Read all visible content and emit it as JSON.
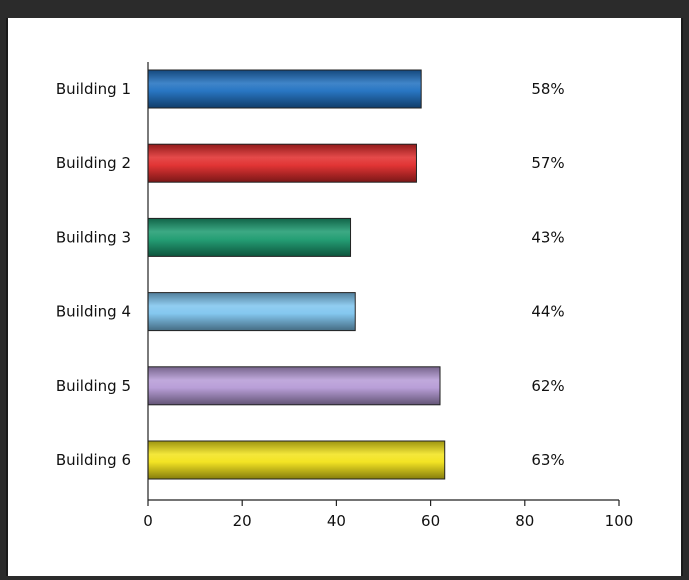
{
  "chart_data": {
    "type": "bar",
    "orientation": "horizontal",
    "categories": [
      "Building 1",
      "Building 2",
      "Building 3",
      "Building 4",
      "Building 5",
      "Building 6"
    ],
    "values": [
      58,
      57,
      43,
      44,
      62,
      63
    ],
    "value_labels": [
      "58%",
      "57%",
      "43%",
      "44%",
      "62%",
      "63%"
    ],
    "colors": [
      "#1e6fc0",
      "#e02a2a",
      "#1a9a6e",
      "#7ec4ee",
      "#b59ad6",
      "#f2e318"
    ],
    "xlim": [
      0,
      100
    ],
    "x_ticks": [
      0,
      20,
      40,
      60,
      80,
      100
    ],
    "grid": false,
    "legend": "none"
  }
}
